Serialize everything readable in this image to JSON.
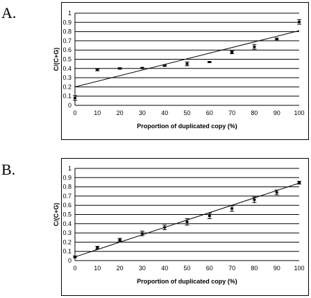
{
  "chart_data": [
    {
      "panel_label": "A.",
      "type": "scatter",
      "xlabel": "Proportion of duplicated copy (%)",
      "ylabel": "C/(C+G)",
      "xlim": [
        0,
        100
      ],
      "ylim": [
        0,
        1
      ],
      "x_ticks": [
        "0",
        "10",
        "20",
        "30",
        "40",
        "50",
        "60",
        "70",
        "80",
        "90",
        "100"
      ],
      "y_ticks": [
        "0",
        "0.1",
        "0.2",
        "0.3",
        "0.4",
        "0.5",
        "0.6",
        "0.7",
        "0.8",
        "0.9",
        "1"
      ],
      "grid": "horizontal",
      "points": [
        {
          "x": 0,
          "y": 0.08,
          "err": 0.025
        },
        {
          "x": 10,
          "y": 0.385,
          "err": 0.01
        },
        {
          "x": 20,
          "y": 0.4,
          "err": 0.008
        },
        {
          "x": 30,
          "y": 0.405,
          "err": 0.006
        },
        {
          "x": 40,
          "y": 0.43,
          "err": 0.006
        },
        {
          "x": 50,
          "y": 0.45,
          "err": 0.02
        },
        {
          "x": 60,
          "y": 0.47,
          "err": 0.006
        },
        {
          "x": 70,
          "y": 0.575,
          "err": 0.015
        },
        {
          "x": 80,
          "y": 0.635,
          "err": 0.025
        },
        {
          "x": 90,
          "y": 0.72,
          "err": 0.01
        },
        {
          "x": 100,
          "y": 0.905,
          "err": 0.025
        }
      ],
      "trendline": {
        "y_at_xmin": 0.2,
        "y_at_xmax": 0.81
      }
    },
    {
      "panel_label": "B.",
      "type": "scatter",
      "xlabel": "Proportion of duplicated copy (%)",
      "ylabel": "C/(C+G)",
      "xlim": [
        0,
        100
      ],
      "ylim": [
        0,
        1
      ],
      "x_ticks": [
        "0",
        "10",
        "20",
        "30",
        "40",
        "50",
        "60",
        "70",
        "80",
        "90",
        "100"
      ],
      "y_ticks": [
        "0",
        "0.1",
        "0.2",
        "0.3",
        "0.4",
        "0.5",
        "0.6",
        "0.7",
        "0.8",
        "0.9",
        "1"
      ],
      "grid": "horizontal",
      "points": [
        {
          "x": 0,
          "y": 0.04,
          "err": 0.01
        },
        {
          "x": 10,
          "y": 0.14,
          "err": 0.015
        },
        {
          "x": 20,
          "y": 0.225,
          "err": 0.015
        },
        {
          "x": 30,
          "y": 0.295,
          "err": 0.025
        },
        {
          "x": 40,
          "y": 0.36,
          "err": 0.025
        },
        {
          "x": 50,
          "y": 0.42,
          "err": 0.035
        },
        {
          "x": 60,
          "y": 0.485,
          "err": 0.03
        },
        {
          "x": 70,
          "y": 0.565,
          "err": 0.03
        },
        {
          "x": 80,
          "y": 0.66,
          "err": 0.03
        },
        {
          "x": 90,
          "y": 0.74,
          "err": 0.025
        },
        {
          "x": 100,
          "y": 0.845,
          "err": 0.015
        }
      ],
      "trendline": {
        "y_at_xmin": 0.04,
        "y_at_xmax": 0.84
      }
    }
  ]
}
